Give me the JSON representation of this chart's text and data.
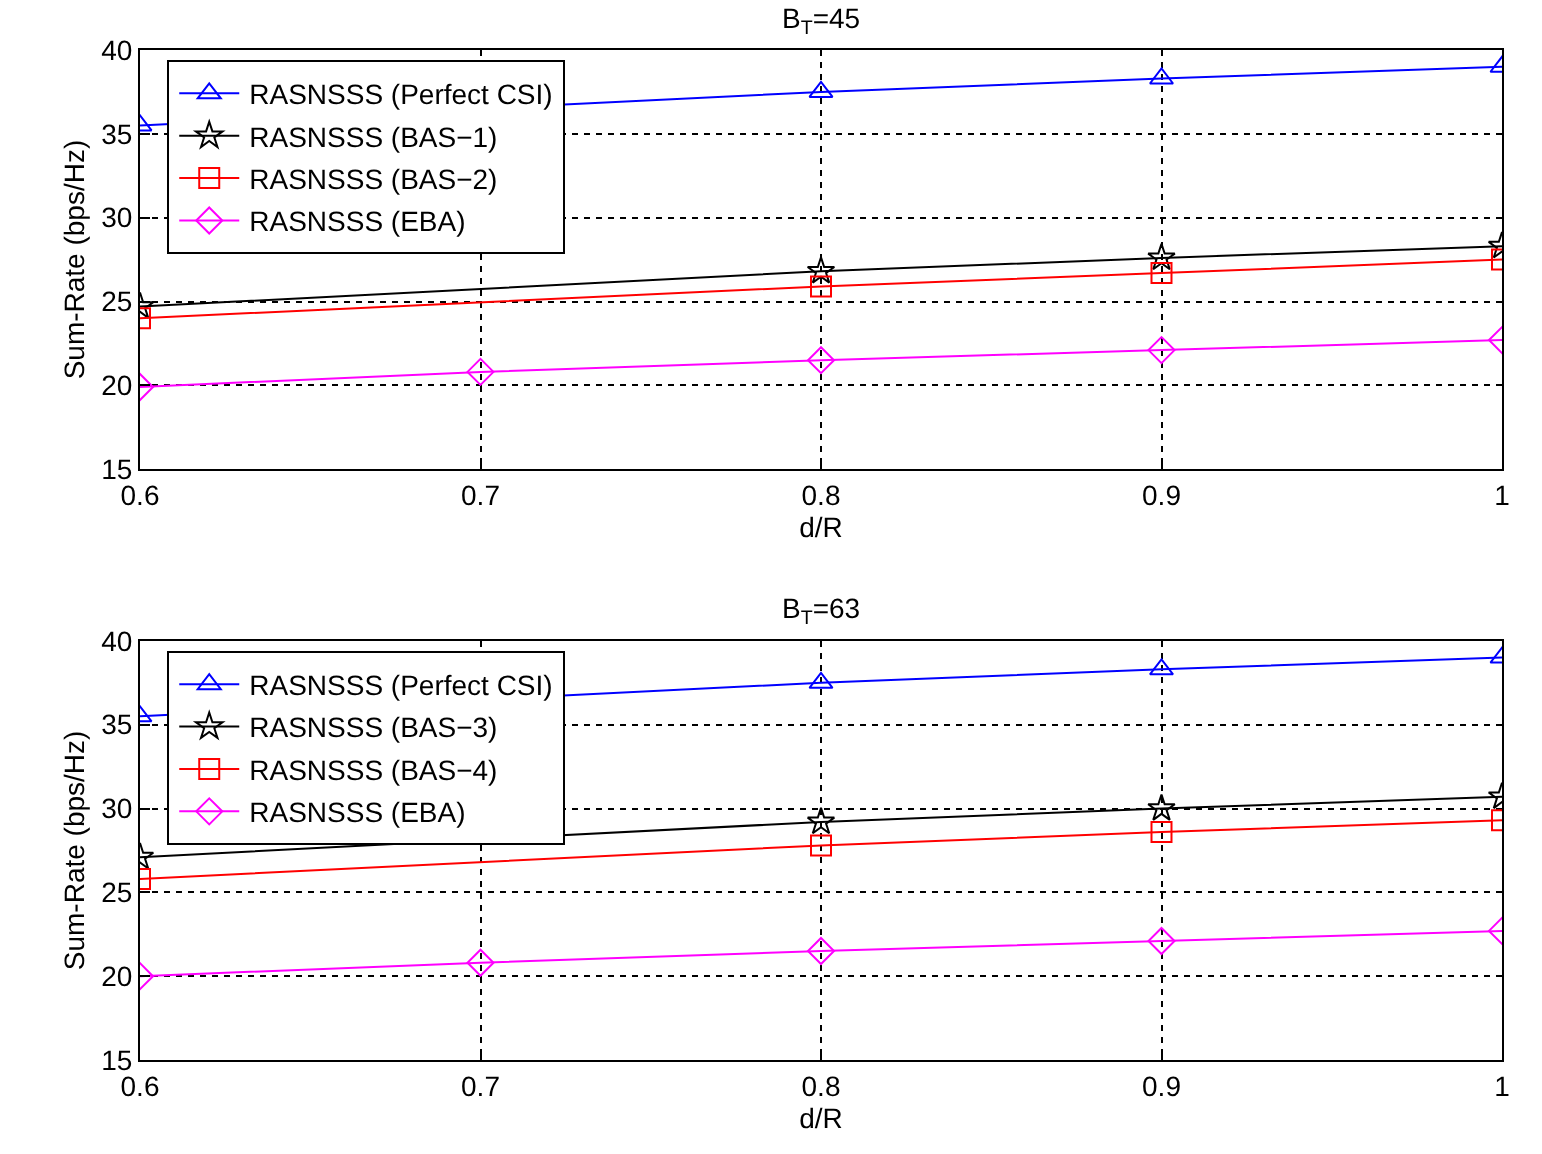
{
  "chart_data": [
    {
      "type": "line",
      "title": "B$_{T}$=45",
      "xlabel": "d/R",
      "ylabel": "Sum-Rate (bps/Hz)",
      "x": [
        0.6,
        0.7,
        0.8,
        0.9,
        1.0
      ],
      "xlim": [
        0.6,
        1.0
      ],
      "xticks": [
        0.6,
        0.7,
        0.8,
        0.9,
        1
      ],
      "ylim": [
        15,
        40
      ],
      "yticks": [
        15,
        20,
        25,
        30,
        35,
        40
      ],
      "grid": true,
      "legend": "top left",
      "line_style": "solid",
      "series": [
        {
          "name": "RASNSSS (Perfect CSI)",
          "color": "#0000ff",
          "marker": "triangle",
          "values": [
            35.5,
            null,
            37.5,
            38.3,
            39.0
          ]
        },
        {
          "name": "RASNSSS (BAS−1)",
          "color": "#000000",
          "marker": "star",
          "values": [
            24.7,
            null,
            26.8,
            27.6,
            28.3
          ]
        },
        {
          "name": "RASNSSS (BAS−2)",
          "color": "#ff0000",
          "marker": "square",
          "values": [
            24.0,
            null,
            25.9,
            26.7,
            27.5
          ]
        },
        {
          "name": "RASNSSS (EBA)",
          "color": "#ff00ff",
          "marker": "diamond",
          "values": [
            19.9,
            20.8,
            21.5,
            22.1,
            22.7
          ]
        }
      ]
    },
    {
      "type": "line",
      "title": "B$_{T}$=63",
      "xlabel": "d/R",
      "ylabel": "Sum-Rate (bps/Hz)",
      "x": [
        0.6,
        0.7,
        0.8,
        0.9,
        1.0
      ],
      "xlim": [
        0.6,
        1.0
      ],
      "xticks": [
        0.6,
        0.7,
        0.8,
        0.9,
        1
      ],
      "ylim": [
        15,
        40
      ],
      "yticks": [
        15,
        20,
        25,
        30,
        35,
        40
      ],
      "grid": true,
      "legend": "top left",
      "line_style": "solid",
      "series": [
        {
          "name": "RASNSSS (Perfect CSI)",
          "color": "#0000ff",
          "marker": "triangle",
          "values": [
            35.5,
            null,
            37.5,
            38.3,
            39.0
          ]
        },
        {
          "name": "RASNSSS (BAS−3)",
          "color": "#000000",
          "marker": "star",
          "values": [
            27.1,
            null,
            29.2,
            30.0,
            30.7
          ]
        },
        {
          "name": "RASNSSS (BAS−4)",
          "color": "#ff0000",
          "marker": "square",
          "values": [
            25.8,
            null,
            27.8,
            28.6,
            29.3
          ]
        },
        {
          "name": "RASNSSS (EBA)",
          "color": "#ff00ff",
          "marker": "diamond",
          "values": [
            20.0,
            20.8,
            21.5,
            22.1,
            22.7
          ]
        }
      ]
    }
  ]
}
